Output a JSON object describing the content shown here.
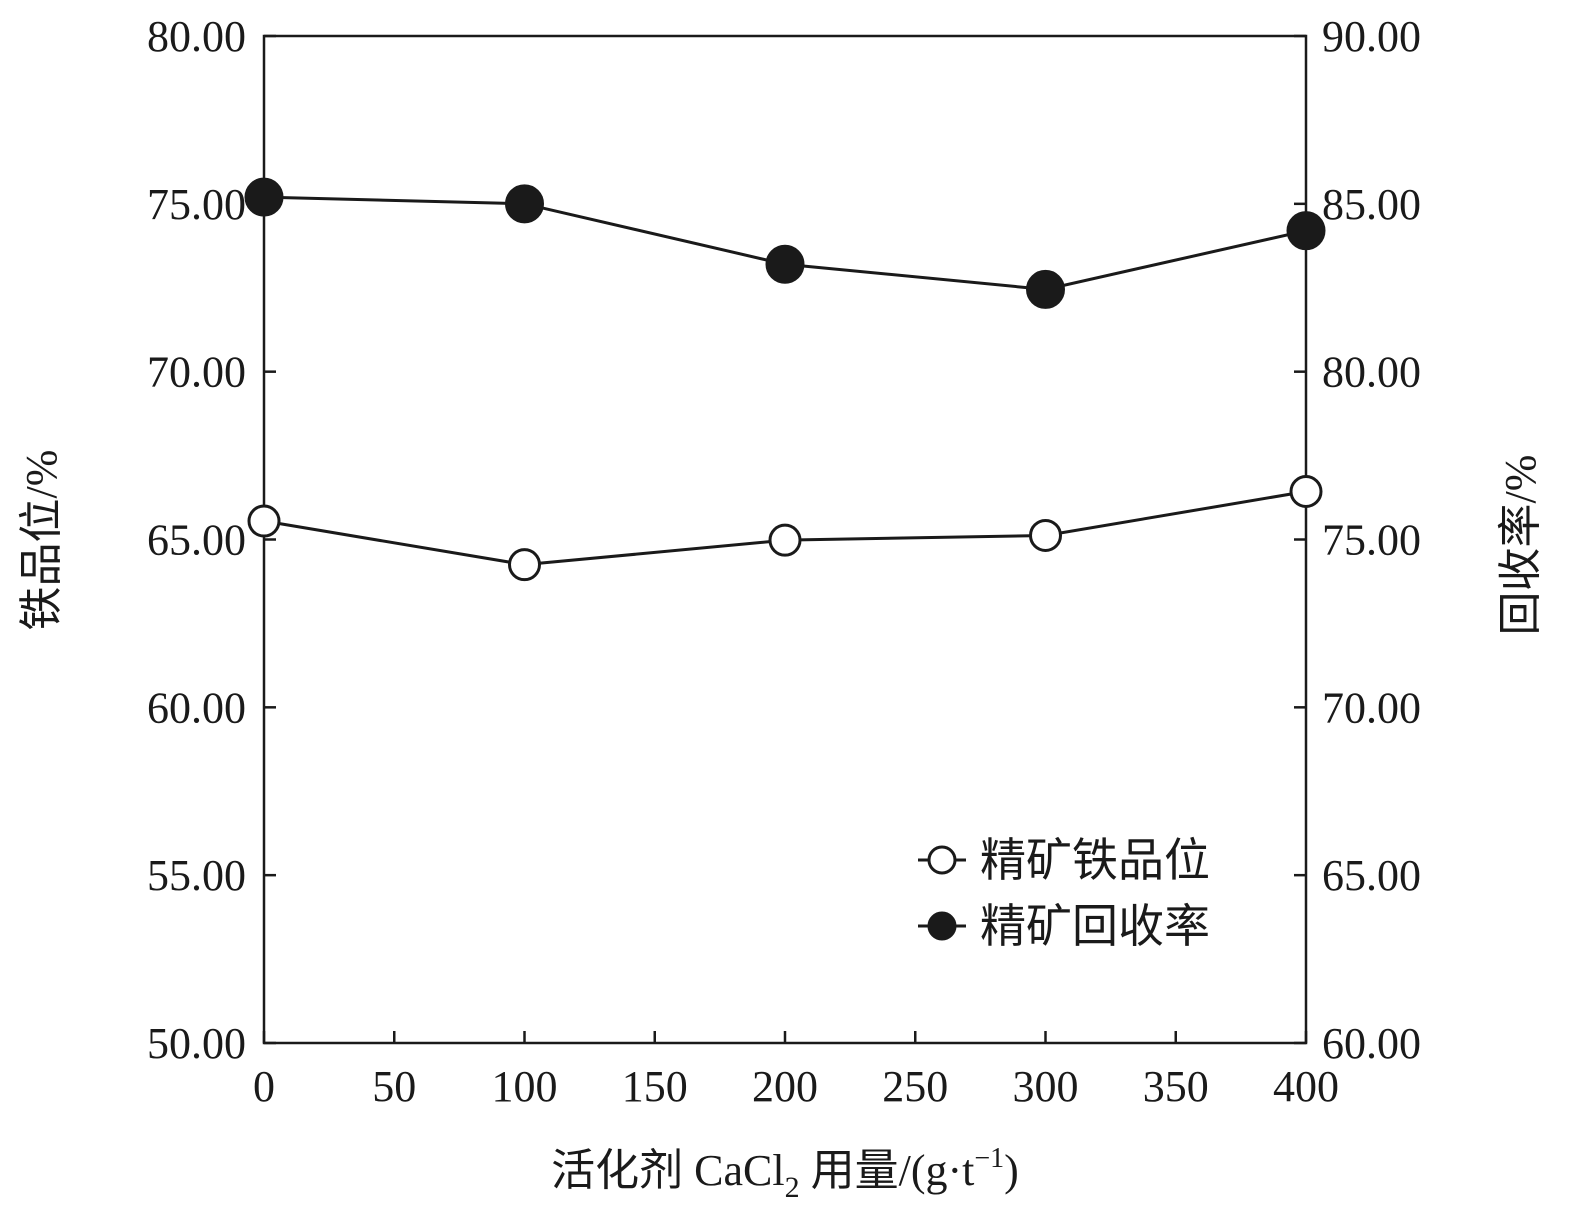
{
  "chart_data": {
    "type": "line",
    "x": [
      0,
      100,
      200,
      300,
      400
    ],
    "xlim": [
      0,
      400
    ],
    "xticks": [
      "0",
      "50",
      "100",
      "150",
      "200",
      "250",
      "300",
      "350",
      "400"
    ],
    "xlabel": {
      "main": "活化剂 CaCl",
      "sub": "2",
      "unit_pre": " 用量/(g·t",
      "sup": "−1",
      "unit_post": ")"
    },
    "y_left": {
      "label": "铁品位/%",
      "lim": [
        50,
        80
      ],
      "ticks": [
        "50.00",
        "55.00",
        "60.00",
        "65.00",
        "70.00",
        "75.00",
        "80.00"
      ]
    },
    "y_right": {
      "label": "回收率/%",
      "lim": [
        60,
        90
      ],
      "ticks": [
        "60.00",
        "65.00",
        "70.00",
        "75.00",
        "80.00",
        "85.00",
        "90.00"
      ]
    },
    "series": [
      {
        "name": "精矿铁品位",
        "axis": "left",
        "marker": "open-circle",
        "values": [
          65.55,
          64.25,
          64.98,
          65.12,
          66.43
        ]
      },
      {
        "name": "精矿回收率",
        "axis": "right",
        "marker": "filled-circle",
        "values": [
          85.2,
          85.0,
          83.2,
          82.45,
          84.2
        ]
      }
    ],
    "grid": false,
    "legend_position": "lower-right",
    "colors": {
      "line": "#1a1a1a",
      "marker_fill": "#1a1a1a",
      "open_fill": "#ffffff"
    }
  }
}
